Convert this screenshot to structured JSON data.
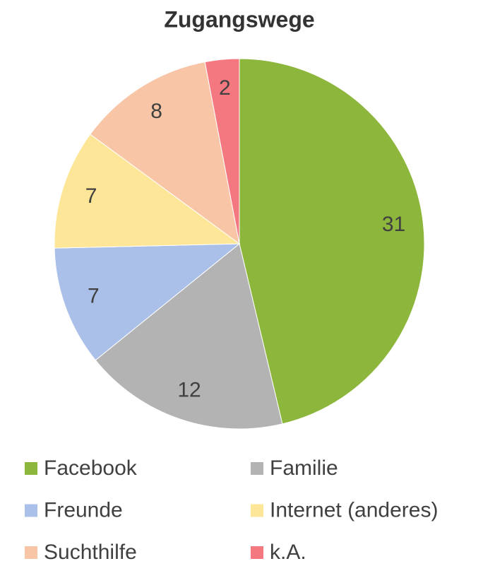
{
  "chart_data": {
    "type": "pie",
    "title": "Zugangswege",
    "categories": [
      "Facebook",
      "Familie",
      "Freunde",
      "Internet (anderes)",
      "Suchthilfe",
      "k.A."
    ],
    "values": [
      31,
      12,
      7,
      7,
      8,
      2
    ],
    "colors": [
      "#8db63c",
      "#b3b3b3",
      "#aac0e8",
      "#fde697",
      "#f8c6a6",
      "#f47880"
    ],
    "legend": "bottom"
  }
}
